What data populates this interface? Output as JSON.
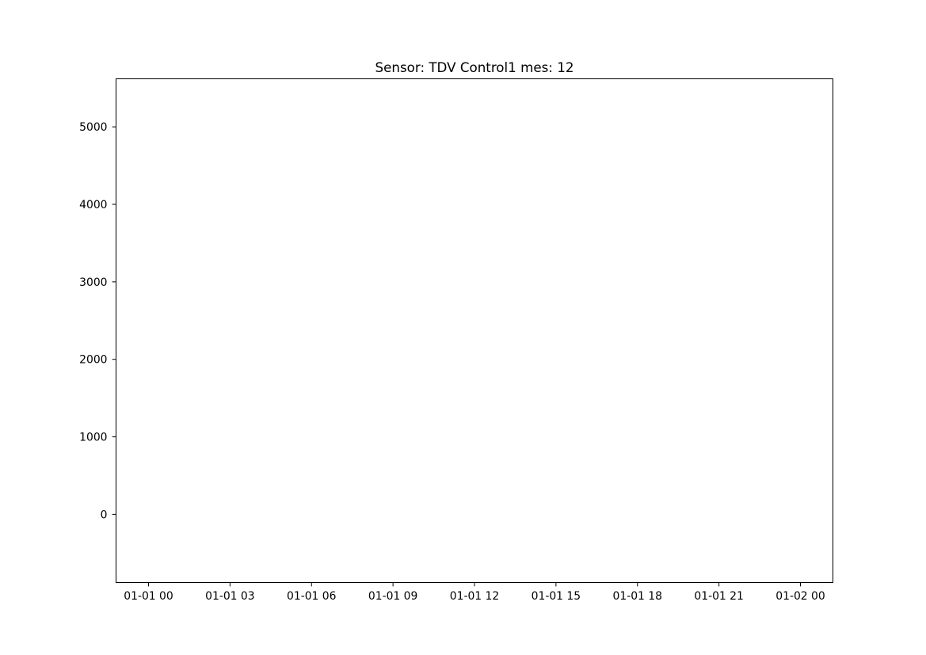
{
  "chart_data": {
    "type": "line",
    "title": "Sensor: TDV Control1 mes: 12",
    "xlabel": "",
    "ylabel": "",
    "x_ticks": [
      "01-01 00",
      "01-01 03",
      "01-01 06",
      "01-01 09",
      "01-01 12",
      "01-01 15",
      "01-01 18",
      "01-01 21",
      "01-02 00"
    ],
    "y_ticks": [
      0,
      1000,
      2000,
      3000,
      4000,
      5000
    ],
    "xlim": [
      "01-01 00",
      "01-02 00"
    ],
    "ylim": [
      -880,
      5620
    ],
    "series": [],
    "grid": false,
    "legend": "none"
  }
}
